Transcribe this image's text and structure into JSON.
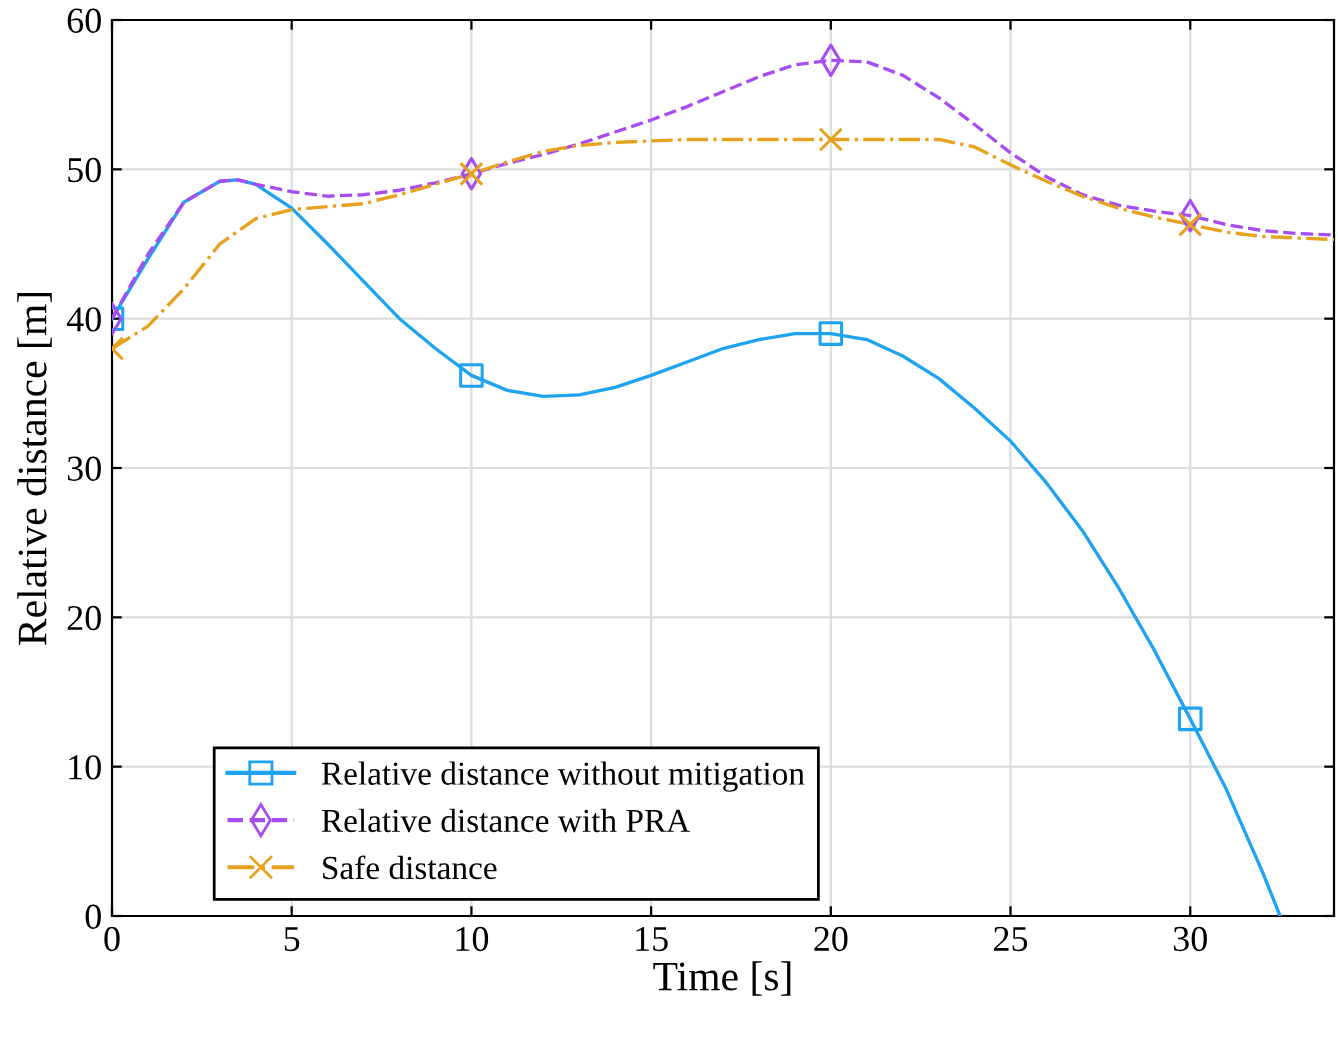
{
  "chart_data": {
    "type": "line",
    "xlabel": "Time [s]",
    "ylabel": "Relative distance [m]",
    "xlim": [
      0,
      34
    ],
    "ylim": [
      0,
      60
    ],
    "xticks": [
      0,
      5,
      10,
      15,
      20,
      25,
      30
    ],
    "yticks": [
      0,
      10,
      20,
      30,
      40,
      50,
      60
    ],
    "grid": true,
    "legend": "bottom left",
    "series": [
      {
        "name": "Relative distance without mitigation",
        "color": "#1fa3f0",
        "line_style": "solid",
        "x": [
          0,
          1,
          2,
          3,
          3.5,
          4,
          5,
          6,
          7,
          8,
          9,
          10,
          11,
          12,
          13,
          14,
          15,
          16,
          17,
          18,
          19,
          20,
          21,
          22,
          23,
          24,
          25,
          26,
          27,
          28,
          29,
          30,
          31,
          32,
          32.5
        ],
        "values": [
          40,
          44,
          47.8,
          49.2,
          49.3,
          49,
          47.4,
          45,
          42.5,
          40,
          38,
          36.2,
          35.2,
          34.8,
          34.9,
          35.4,
          36.2,
          37.1,
          38,
          38.6,
          39,
          39,
          38.6,
          37.5,
          36,
          34,
          31.8,
          29,
          25.8,
          22,
          17.8,
          13.2,
          8.5,
          3,
          0
        ]
      },
      {
        "type": "scatter",
        "color": "#1fa3f0",
        "marker": "square",
        "x": [
          0,
          10,
          20,
          30
        ],
        "values": [
          40,
          36.2,
          39,
          13.2
        ]
      },
      {
        "name": "Relative distance with PRA",
        "color": "#a64cf0",
        "line_style": "dashed",
        "x": [
          0,
          1,
          2,
          3,
          3.5,
          4,
          5,
          6,
          7,
          8,
          9,
          10,
          11,
          12,
          13,
          14,
          15,
          16,
          17,
          18,
          19,
          20,
          21,
          22,
          23,
          24,
          25,
          26,
          27,
          28,
          29,
          30,
          31,
          32,
          33,
          34
        ],
        "values": [
          40,
          44.3,
          47.8,
          49.2,
          49.3,
          49,
          48.5,
          48.2,
          48.3,
          48.6,
          49.1,
          49.7,
          50.4,
          51,
          51.7,
          52.5,
          53.3,
          54.2,
          55.2,
          56.2,
          57,
          57.3,
          57.2,
          56.3,
          54.8,
          53,
          51.1,
          49.5,
          48.3,
          47.6,
          47.2,
          46.9,
          46.3,
          45.9,
          45.7,
          45.6
        ]
      },
      {
        "type": "scatter",
        "color": "#a64cf0",
        "marker": "diamond",
        "x": [
          0,
          10,
          20,
          30
        ],
        "values": [
          40,
          49.7,
          57.3,
          46.9
        ]
      },
      {
        "name": "Safe distance",
        "color": "#e6a21e",
        "line_style": "dashdot",
        "x": [
          0,
          1,
          2,
          3,
          4,
          5,
          6,
          7,
          8,
          9,
          10,
          11,
          12,
          13,
          14,
          15,
          16,
          20,
          23,
          24,
          25,
          26,
          27,
          28,
          29,
          30,
          31,
          32,
          33,
          34
        ],
        "values": [
          38,
          39.5,
          42,
          45,
          46.7,
          47.3,
          47.5,
          47.7,
          48.3,
          49,
          49.7,
          50.5,
          51.2,
          51.6,
          51.8,
          51.9,
          52,
          52,
          52,
          51.5,
          50.3,
          49.2,
          48.2,
          47.4,
          46.8,
          46.3,
          45.8,
          45.5,
          45.4,
          45.3
        ]
      },
      {
        "type": "scatter",
        "color": "#e6a21e",
        "marker": "cross",
        "x": [
          0,
          10,
          20,
          30
        ],
        "values": [
          38,
          49.7,
          52,
          46.3
        ]
      }
    ]
  }
}
